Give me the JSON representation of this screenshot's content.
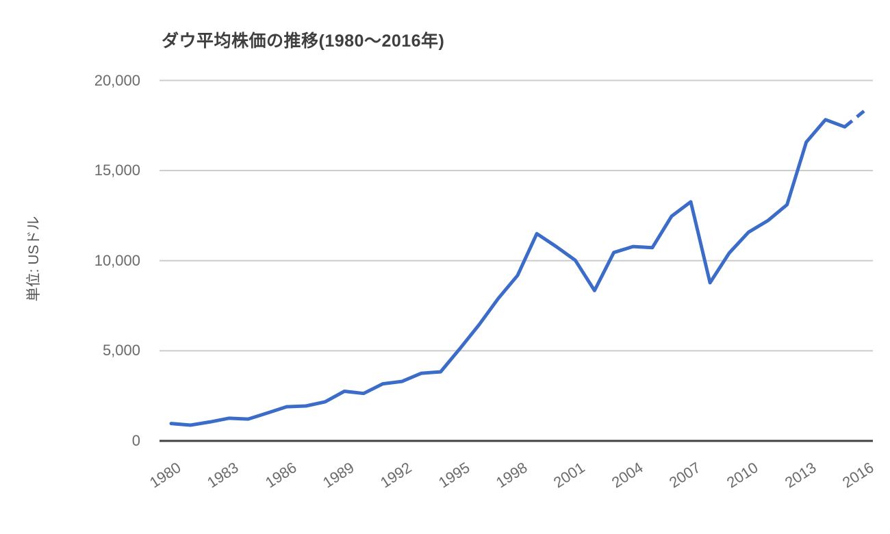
{
  "chart_data": {
    "type": "line",
    "title": "ダウ平均株価の推移(1980～2016年)",
    "ylabel": "単位: USドル",
    "xlabel": "",
    "legend_position": "none",
    "grid": true,
    "xlim": [
      1980,
      2016
    ],
    "ylim": [
      0,
      20000
    ],
    "x": [
      1980,
      1981,
      1982,
      1983,
      1984,
      1985,
      1986,
      1987,
      1988,
      1989,
      1990,
      1991,
      1992,
      1993,
      1994,
      1995,
      1996,
      1997,
      1998,
      1999,
      2000,
      2001,
      2002,
      2003,
      2004,
      2005,
      2006,
      2007,
      2008,
      2009,
      2010,
      2011,
      2012,
      2013,
      2014,
      2015,
      2016
    ],
    "values": [
      964,
      875,
      1047,
      1259,
      1212,
      1547,
      1896,
      1939,
      2169,
      2753,
      2634,
      3169,
      3301,
      3754,
      3834,
      5117,
      6448,
      7908,
      9181,
      11497,
      10787,
      10022,
      8342,
      10454,
      10783,
      10718,
      12463,
      13265,
      8776,
      10428,
      11578,
      12218,
      13104,
      16577,
      17823,
      17425,
      18300
    ],
    "x_ticks": [
      "1980",
      "1983",
      "1986",
      "1989",
      "1992",
      "1995",
      "1998",
      "2001",
      "2004",
      "2007",
      "2010",
      "2013",
      "2016"
    ],
    "x_tick_step_years": 3,
    "y_ticks": [
      "0",
      "5,000",
      "10,000",
      "15,000",
      "20,000"
    ],
    "y_tick_values": [
      0,
      5000,
      10000,
      15000,
      20000
    ],
    "last_segment_dashed": true,
    "colors": {
      "line": "#3b6cc7",
      "grid": "#cccccc",
      "axis": "#424242",
      "tick_label": "#6b6b6b",
      "title": "#3f3f3f",
      "y_title": "#575757",
      "background": "#ffffff"
    }
  }
}
